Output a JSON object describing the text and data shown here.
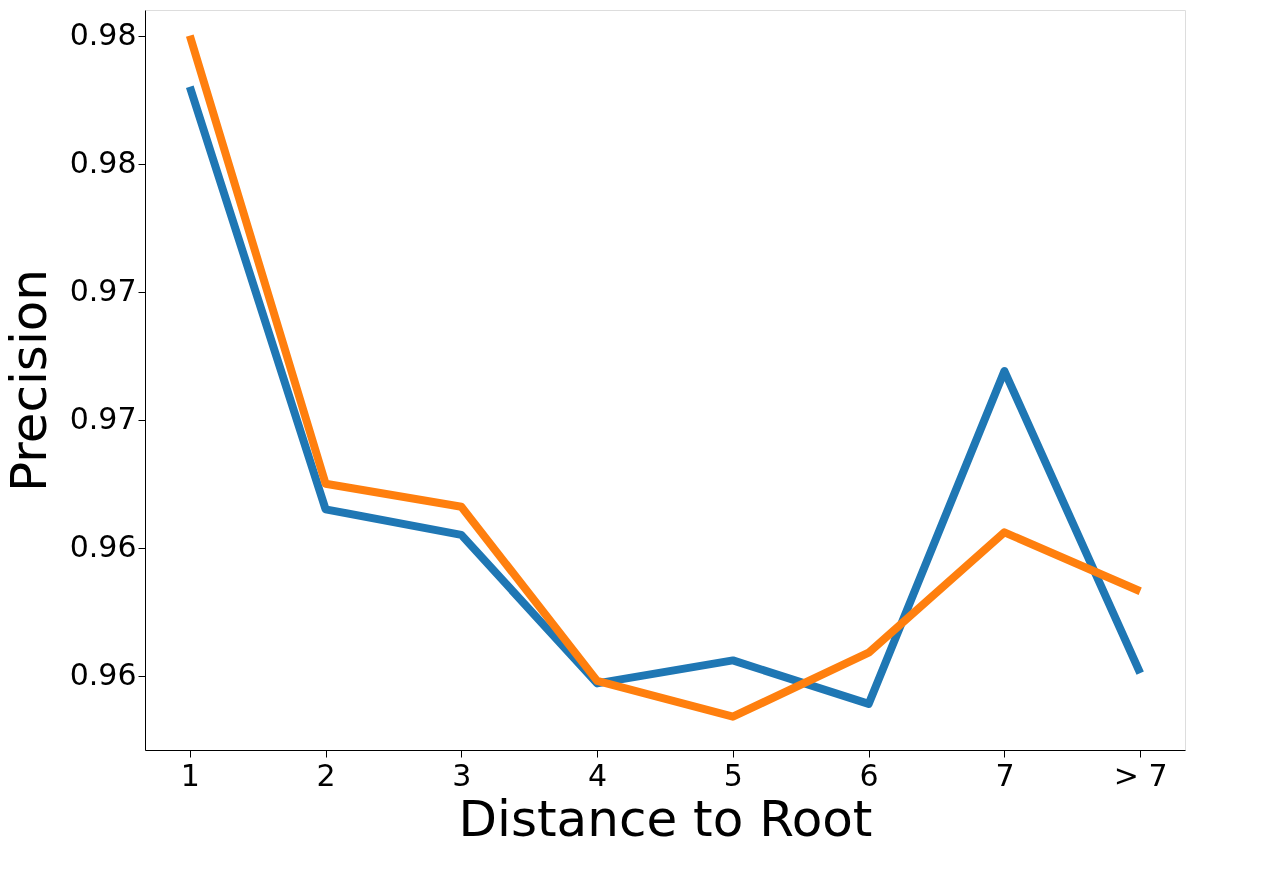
{
  "chart_data": {
    "type": "line",
    "xlabel": "Distance to Root",
    "ylabel": "Precision",
    "categories": [
      "1",
      "2",
      "3",
      "4",
      "5",
      "6",
      "7",
      "> 7"
    ],
    "series": [
      {
        "color": "#1f77b4",
        "values": [
          0.983,
          0.9665,
          0.9655,
          0.9597,
          0.9606,
          0.9589,
          0.9719,
          0.9601
        ]
      },
      {
        "color": "#ff7f0e",
        "values": [
          0.985,
          0.9675,
          0.9666,
          0.9598,
          0.9584,
          0.9609,
          0.9656,
          0.9633
        ]
      }
    ],
    "ylim": [
      0.9571,
      0.986
    ],
    "yticks": [
      {
        "value": 0.96,
        "label": "0.96"
      },
      {
        "value": 0.965,
        "label": "0.96"
      },
      {
        "value": 0.97,
        "label": "0.97"
      },
      {
        "value": 0.975,
        "label": "0.97"
      },
      {
        "value": 0.98,
        "label": "0.98"
      },
      {
        "value": 0.985,
        "label": "0.98"
      }
    ],
    "grid": false,
    "marker": "none",
    "line_style": "solid"
  }
}
